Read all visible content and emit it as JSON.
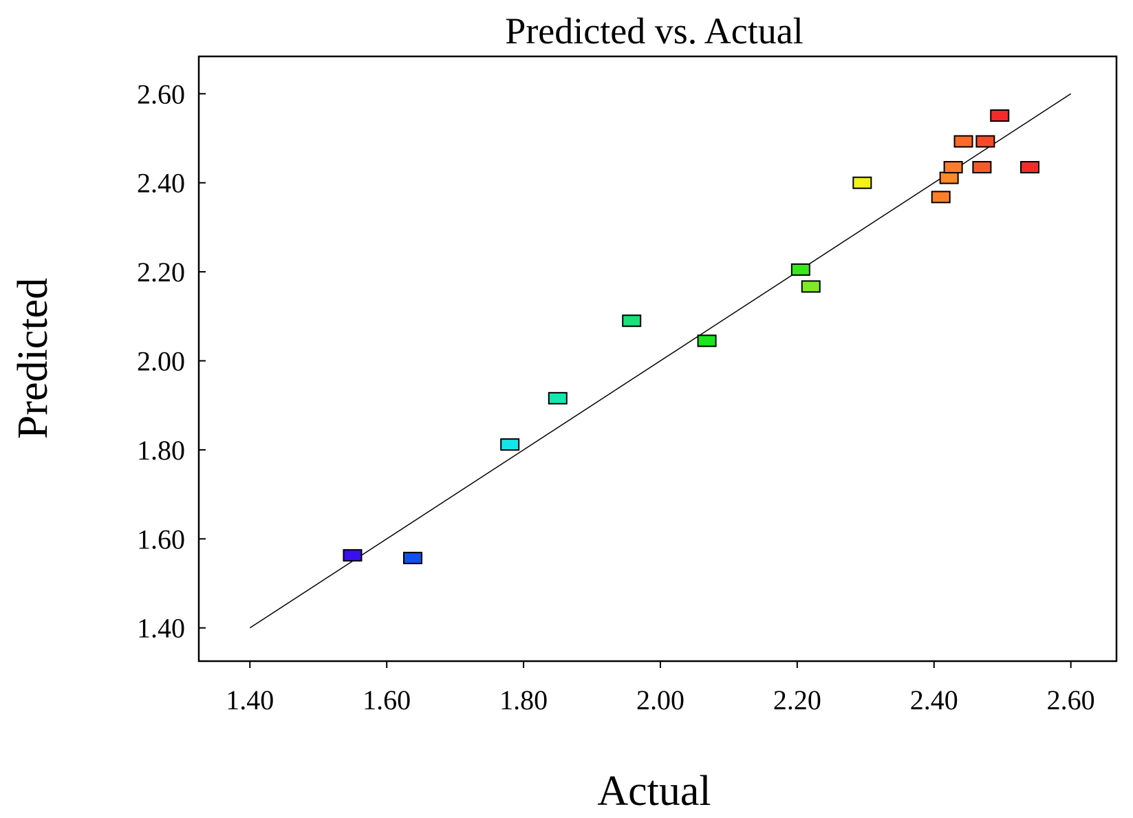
{
  "chart_data": {
    "type": "scatter",
    "title": "Predicted vs. Actual",
    "xlabel": "Actual",
    "ylabel": "Predicted",
    "xlim": [
      1.3253,
      2.6667
    ],
    "ylim": [
      1.3253,
      2.6839
    ],
    "x_ticks": [
      "1.40",
      "1.60",
      "1.80",
      "2.00",
      "2.20",
      "2.40",
      "2.60"
    ],
    "y_ticks": [
      "1.40",
      "1.60",
      "1.80",
      "2.00",
      "2.20",
      "2.40",
      "2.60"
    ],
    "grid": false,
    "legend": "none",
    "reference_line": {
      "x": [
        1.4,
        2.6
      ],
      "y": [
        1.4,
        2.6
      ]
    },
    "series": [
      {
        "points": [
          {
            "x": 1.55,
            "y": 1.563,
            "color": "#3a10f0"
          },
          {
            "x": 1.638,
            "y": 1.557,
            "color": "#1152ee"
          },
          {
            "x": 1.78,
            "y": 1.812,
            "color": "#13e6ea"
          },
          {
            "x": 1.85,
            "y": 1.916,
            "color": "#13e8b0"
          },
          {
            "x": 1.958,
            "y": 2.09,
            "color": "#19e078"
          },
          {
            "x": 2.068,
            "y": 2.045,
            "color": "#19e61e"
          },
          {
            "x": 2.205,
            "y": 2.205,
            "color": "#3be61e"
          },
          {
            "x": 2.22,
            "y": 2.167,
            "color": "#7fec22"
          },
          {
            "x": 2.295,
            "y": 2.4,
            "color": "#f4f21e"
          },
          {
            "x": 2.41,
            "y": 2.368,
            "color": "#ff7f28"
          },
          {
            "x": 2.422,
            "y": 2.411,
            "color": "#ff8a28"
          },
          {
            "x": 2.428,
            "y": 2.435,
            "color": "#ff7d2a"
          },
          {
            "x": 2.443,
            "y": 2.493,
            "color": "#ff6a28"
          },
          {
            "x": 2.47,
            "y": 2.435,
            "color": "#f75a2a"
          },
          {
            "x": 2.475,
            "y": 2.493,
            "color": "#f74a2a"
          },
          {
            "x": 2.496,
            "y": 2.551,
            "color": "#f52a2a"
          },
          {
            "x": 2.54,
            "y": 2.435,
            "color": "#f52a2a"
          }
        ]
      }
    ]
  }
}
